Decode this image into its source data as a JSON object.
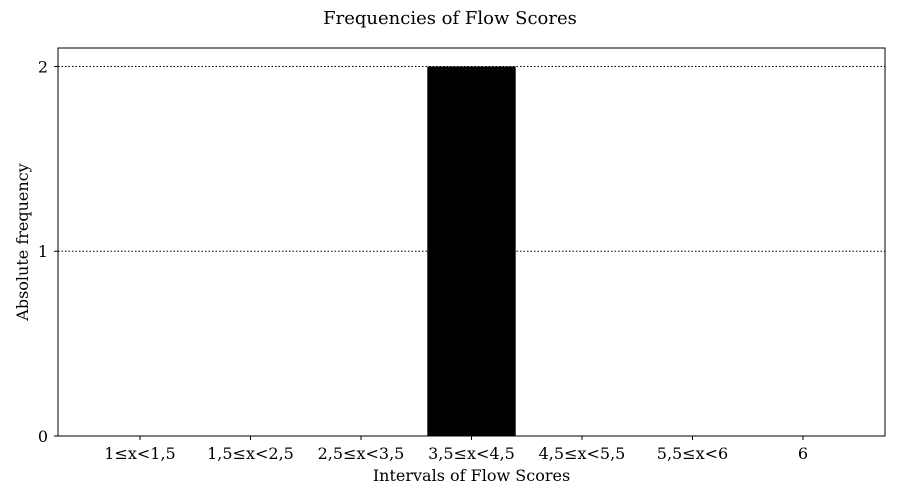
{
  "chart_data": {
    "type": "bar",
    "title": "Frequencies of Flow Scores",
    "xlabel": "Intervals of Flow Scores",
    "ylabel": "Absolute frequency",
    "categories": [
      "1≤x<1,5",
      "1,5≤x<2,5",
      "2,5≤x<3,5",
      "3,5≤x<4,5",
      "4,5≤x<5,5",
      "5,5≤x<6",
      "6"
    ],
    "values": [
      0,
      0,
      0,
      2,
      0,
      0,
      0
    ],
    "ylim": [
      0,
      2.1
    ],
    "yticks": [
      0,
      1,
      2
    ],
    "grid": "y-dotted",
    "bar_color": "#000000"
  }
}
